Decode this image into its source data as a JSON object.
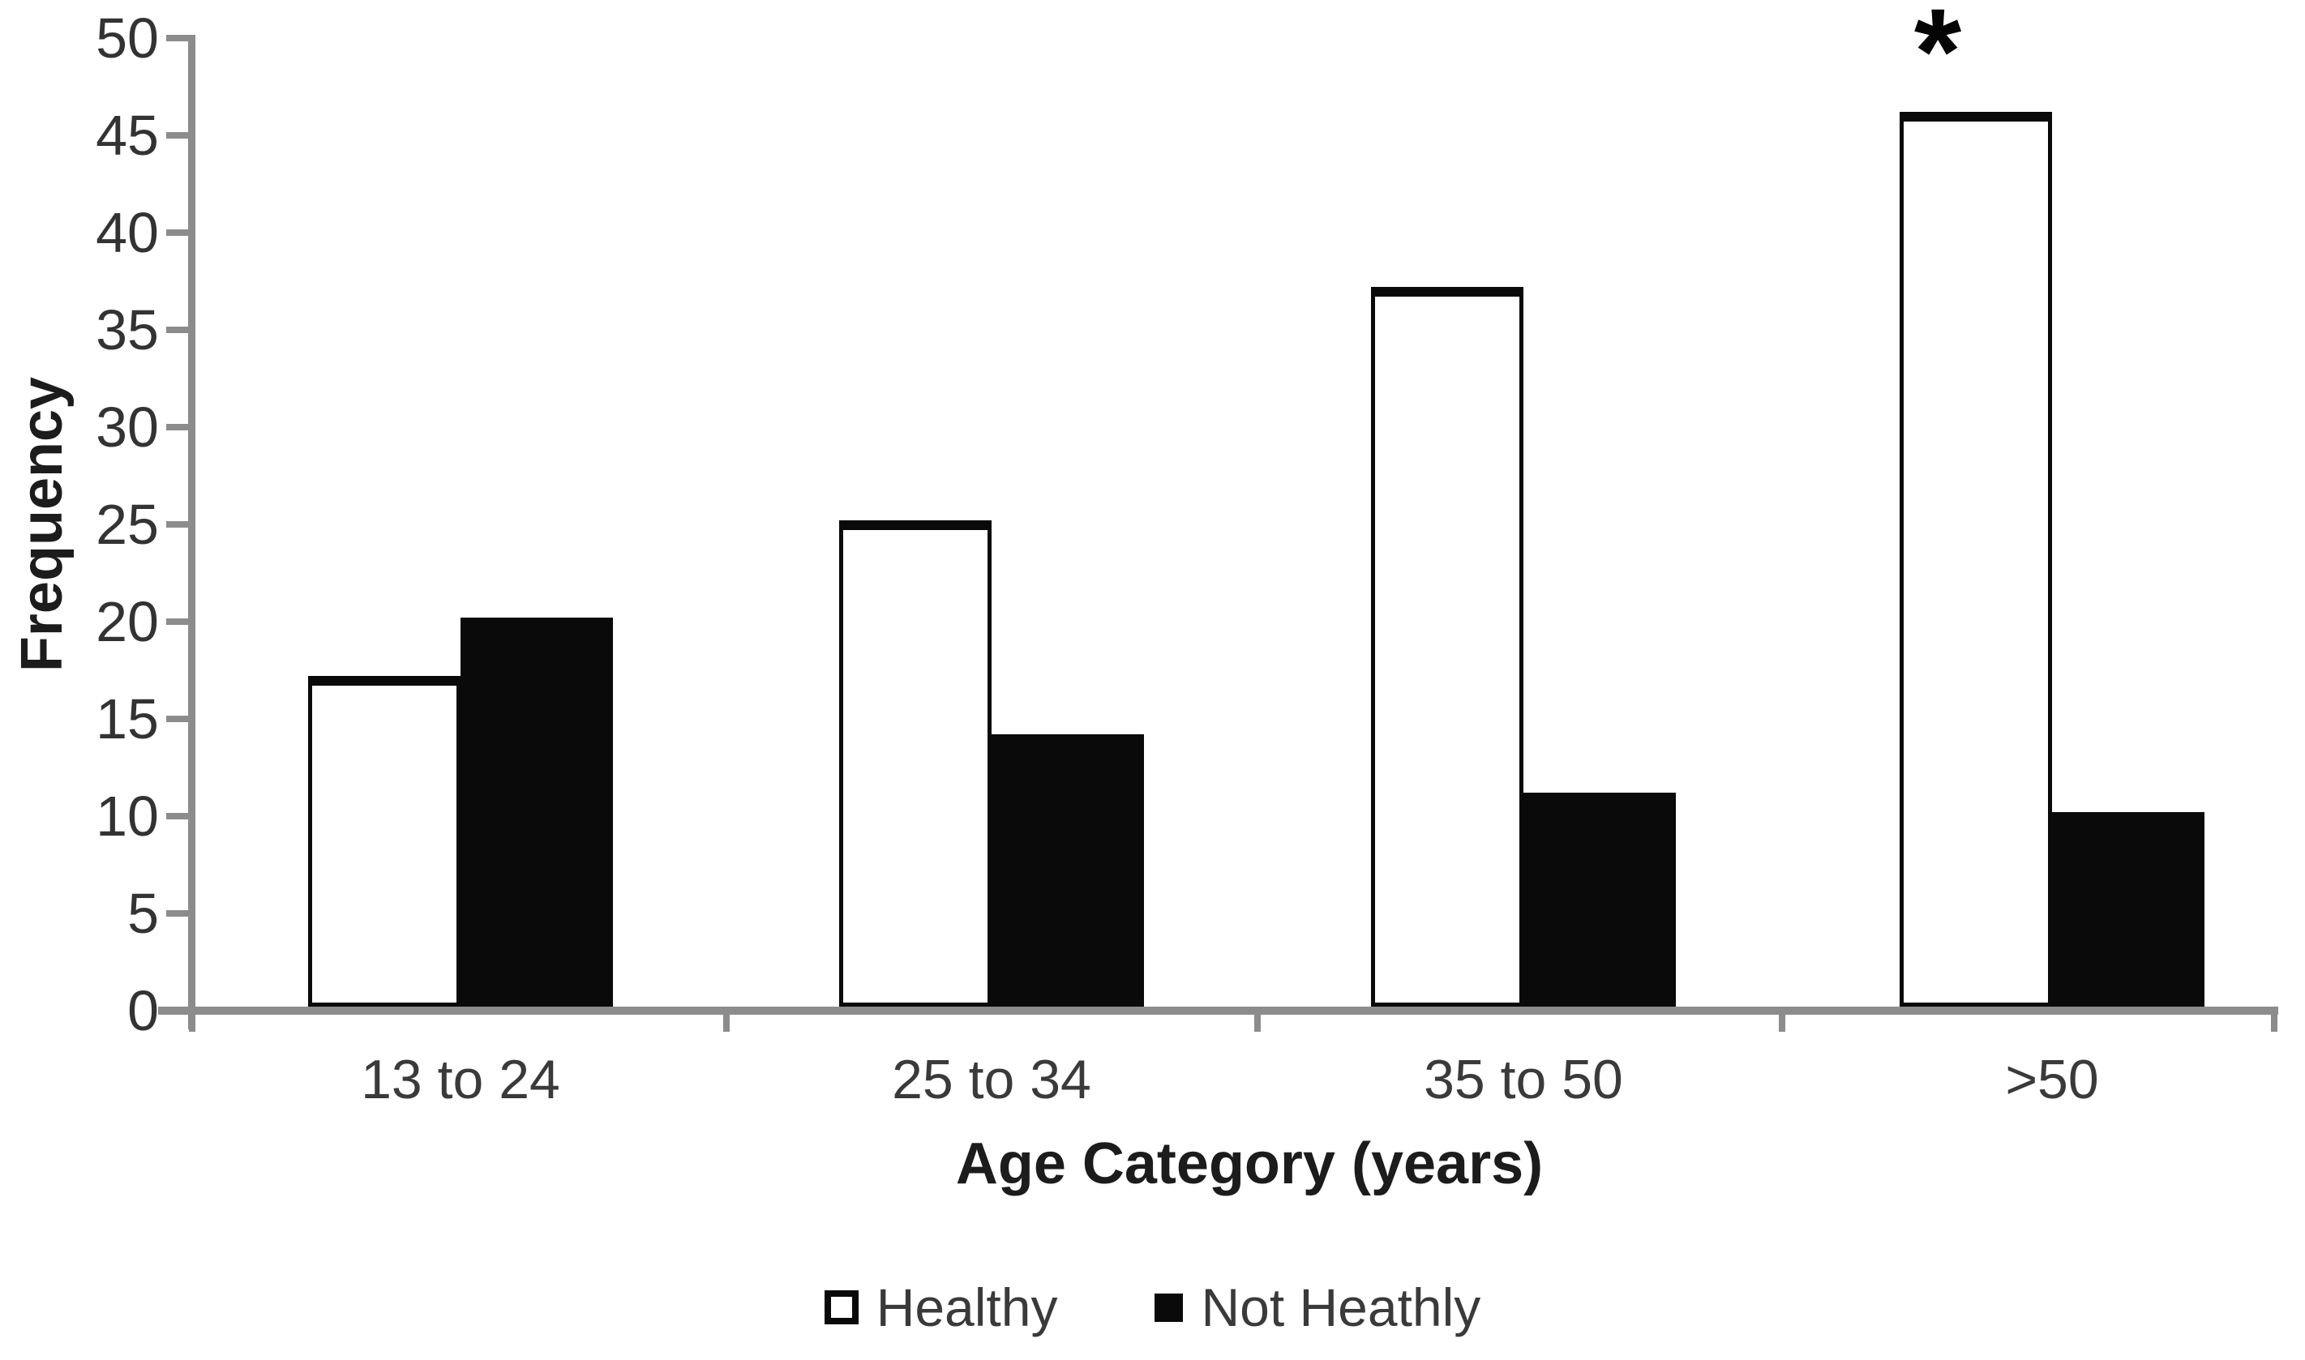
{
  "chart_data": {
    "type": "bar",
    "title": "",
    "categories": [
      "13 to 24",
      "25 to 34",
      "35 to 50",
      ">50"
    ],
    "series": [
      {
        "name": "Healthy",
        "style": "white",
        "values": [
          17,
          25,
          37,
          46
        ]
      },
      {
        "name": "Not Heathly",
        "style": "black",
        "values": [
          20,
          14,
          11,
          10
        ]
      }
    ],
    "xlabel": "Age Category (years)",
    "ylabel": "Frequency",
    "ylim": [
      0,
      50
    ],
    "yticks": [
      0,
      5,
      10,
      15,
      20,
      25,
      30,
      35,
      40,
      45,
      50
    ],
    "grid": false,
    "legend_position": "bottom",
    "annotation": {
      "text": "*",
      "category": ">50",
      "series": "Healthy"
    }
  },
  "colors": {
    "axis": "#8c8c8c",
    "tick_label": "#333333",
    "axis_title": "#1c1c1c",
    "bar_outline": "#0a0a0a",
    "bar_fill_healthy": "#ffffff",
    "bar_fill_not_healthy": "#0a0a0a",
    "legend_text": "#3a3a3a"
  }
}
